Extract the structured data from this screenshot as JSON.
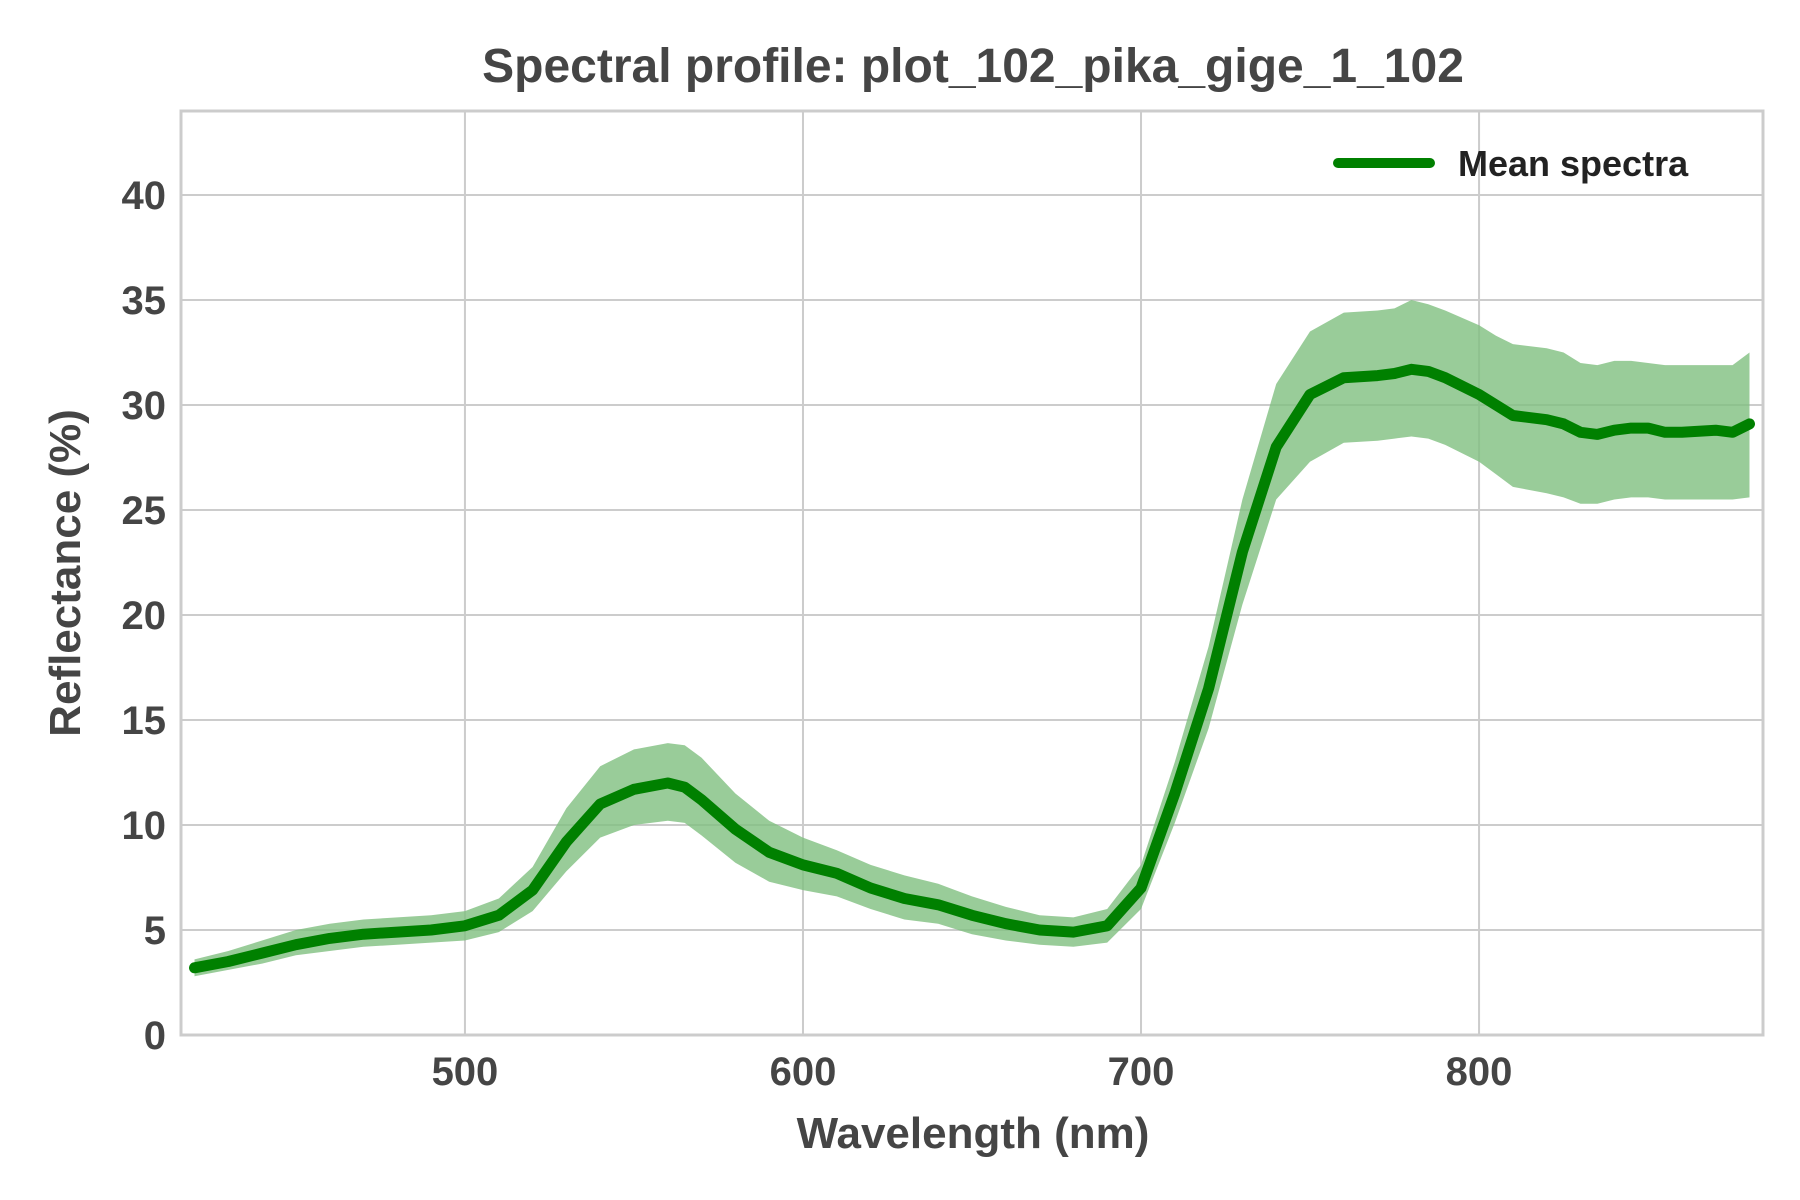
{
  "chart_data": {
    "type": "line",
    "title": "Spectral profile: plot_102_pika_gige_1_102",
    "xlabel": "Wavelength (nm)",
    "ylabel": "Reflectance (%)",
    "xlim": [
      416,
      884
    ],
    "ylim": [
      0,
      44
    ],
    "xticks": [
      500,
      600,
      700,
      800
    ],
    "yticks": [
      0,
      5,
      10,
      15,
      20,
      25,
      30,
      35,
      40
    ],
    "grid": true,
    "legend": {
      "position": "top-right"
    },
    "colors": {
      "line": "#008000",
      "band": "#7fbf7f"
    },
    "series": [
      {
        "name": "Mean spectra",
        "x": [
          420,
          430,
          440,
          450,
          460,
          470,
          480,
          490,
          500,
          510,
          520,
          530,
          540,
          550,
          560,
          565,
          570,
          580,
          590,
          600,
          610,
          620,
          630,
          640,
          650,
          660,
          670,
          680,
          690,
          700,
          710,
          720,
          730,
          740,
          750,
          760,
          770,
          775,
          780,
          785,
          790,
          800,
          805,
          810,
          820,
          825,
          830,
          835,
          840,
          845,
          850,
          855,
          860,
          870,
          875,
          880
        ],
        "y": [
          3.2,
          3.5,
          3.9,
          4.3,
          4.6,
          4.8,
          4.9,
          5.0,
          5.2,
          5.7,
          6.9,
          9.2,
          11.0,
          11.7,
          12.0,
          11.8,
          11.2,
          9.8,
          8.7,
          8.1,
          7.7,
          7.0,
          6.5,
          6.2,
          5.7,
          5.3,
          5.0,
          4.9,
          5.2,
          7.0,
          11.5,
          16.5,
          23.0,
          28.0,
          30.5,
          31.3,
          31.4,
          31.5,
          31.7,
          31.6,
          31.3,
          30.5,
          30.0,
          29.5,
          29.3,
          29.1,
          28.7,
          28.6,
          28.8,
          28.9,
          28.9,
          28.7,
          28.7,
          28.8,
          28.7,
          29.1
        ],
        "upper": [
          3.6,
          4.0,
          4.5,
          5.0,
          5.3,
          5.5,
          5.6,
          5.7,
          5.9,
          6.5,
          8.0,
          10.8,
          12.8,
          13.6,
          13.9,
          13.8,
          13.2,
          11.5,
          10.2,
          9.4,
          8.8,
          8.1,
          7.6,
          7.2,
          6.6,
          6.1,
          5.7,
          5.6,
          6.0,
          8.1,
          13.0,
          18.5,
          25.5,
          31.0,
          33.5,
          34.4,
          34.5,
          34.6,
          35.0,
          34.8,
          34.5,
          33.8,
          33.3,
          32.9,
          32.7,
          32.5,
          32.0,
          31.9,
          32.1,
          32.1,
          32.0,
          31.9,
          31.9,
          31.9,
          31.9,
          32.5
        ],
        "lower": [
          2.8,
          3.1,
          3.4,
          3.8,
          4.0,
          4.2,
          4.3,
          4.4,
          4.5,
          4.9,
          5.9,
          7.8,
          9.4,
          10.0,
          10.2,
          10.1,
          9.5,
          8.2,
          7.3,
          6.9,
          6.6,
          6.0,
          5.5,
          5.3,
          4.8,
          4.5,
          4.3,
          4.2,
          4.4,
          6.0,
          10.1,
          14.6,
          20.5,
          25.5,
          27.3,
          28.2,
          28.3,
          28.4,
          28.5,
          28.4,
          28.1,
          27.3,
          26.7,
          26.1,
          25.8,
          25.6,
          25.3,
          25.3,
          25.5,
          25.6,
          25.6,
          25.5,
          25.5,
          25.5,
          25.5,
          25.6
        ]
      }
    ]
  }
}
